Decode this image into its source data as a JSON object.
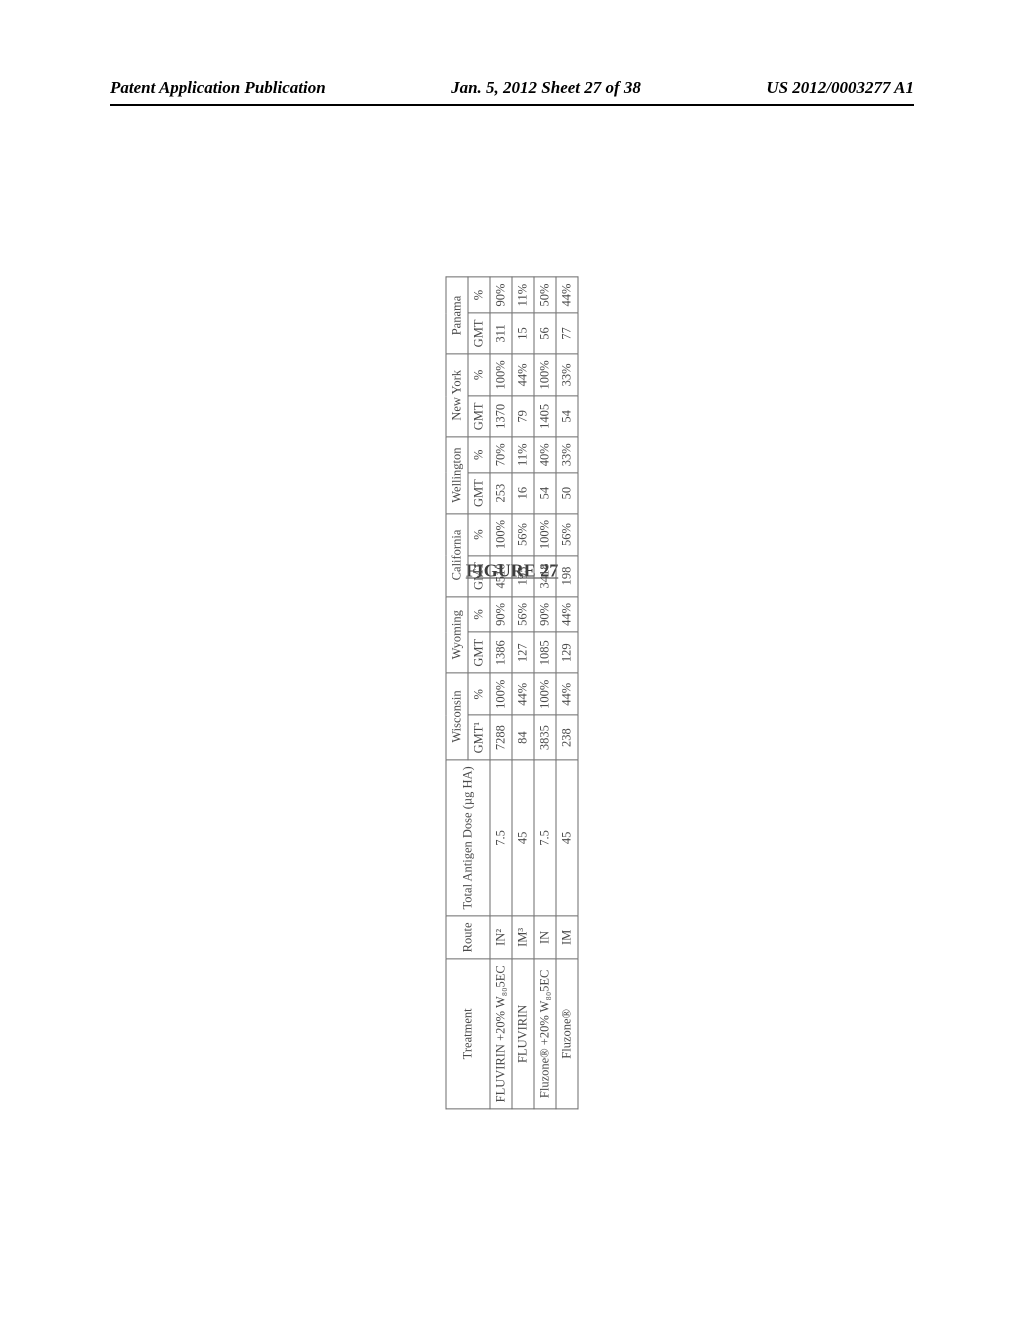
{
  "header": {
    "left": "Patent Application Publication",
    "center": "Jan. 5, 2012  Sheet 27 of 38",
    "right": "US 2012/0003277 A1"
  },
  "figure": {
    "label": "FIGURE 27",
    "columns": {
      "treatment": "Treatment",
      "route": "Route",
      "dose": "Total Antigen Dose (µg HA)",
      "gmt_sup": "GMT¹",
      "gmt": "GMT",
      "pct": "%"
    },
    "strains": [
      "Wisconsin",
      "Wyoming",
      "California",
      "Wellington",
      "New York",
      "Panama"
    ],
    "rows": [
      {
        "treatment": "FLUVIRIN +20% W₈₀5EC",
        "route": "IN²",
        "dose": "7.5",
        "vals": [
          {
            "gmt": "7288",
            "pct": "100%"
          },
          {
            "gmt": "1386",
            "pct": "90%"
          },
          {
            "gmt": "4510",
            "pct": "100%"
          },
          {
            "gmt": "253",
            "pct": "70%"
          },
          {
            "gmt": "1370",
            "pct": "100%"
          },
          {
            "gmt": "311",
            "pct": "90%"
          }
        ]
      },
      {
        "treatment": "FLUVIRIN",
        "route": "IM³",
        "dose": "45",
        "vals": [
          {
            "gmt": "84",
            "pct": "44%"
          },
          {
            "gmt": "127",
            "pct": "56%"
          },
          {
            "gmt": "195",
            "pct": "56%"
          },
          {
            "gmt": "16",
            "pct": "11%"
          },
          {
            "gmt": "79",
            "pct": "44%"
          },
          {
            "gmt": "15",
            "pct": "11%"
          }
        ]
      },
      {
        "treatment": "Fluzone® +20% W₈₀5EC",
        "route": "IN",
        "dose": "7.5",
        "vals": [
          {
            "gmt": "3835",
            "pct": "100%"
          },
          {
            "gmt": "1085",
            "pct": "90%"
          },
          {
            "gmt": "3418",
            "pct": "100%"
          },
          {
            "gmt": "54",
            "pct": "40%"
          },
          {
            "gmt": "1405",
            "pct": "100%"
          },
          {
            "gmt": "56",
            "pct": "50%"
          }
        ]
      },
      {
        "treatment": "Fluzone®",
        "route": "IM",
        "dose": "45",
        "vals": [
          {
            "gmt": "238",
            "pct": "44%"
          },
          {
            "gmt": "129",
            "pct": "44%"
          },
          {
            "gmt": "198",
            "pct": "56%"
          },
          {
            "gmt": "50",
            "pct": "33%"
          },
          {
            "gmt": "54",
            "pct": "33%"
          },
          {
            "gmt": "77",
            "pct": "44%"
          }
        ]
      }
    ]
  }
}
